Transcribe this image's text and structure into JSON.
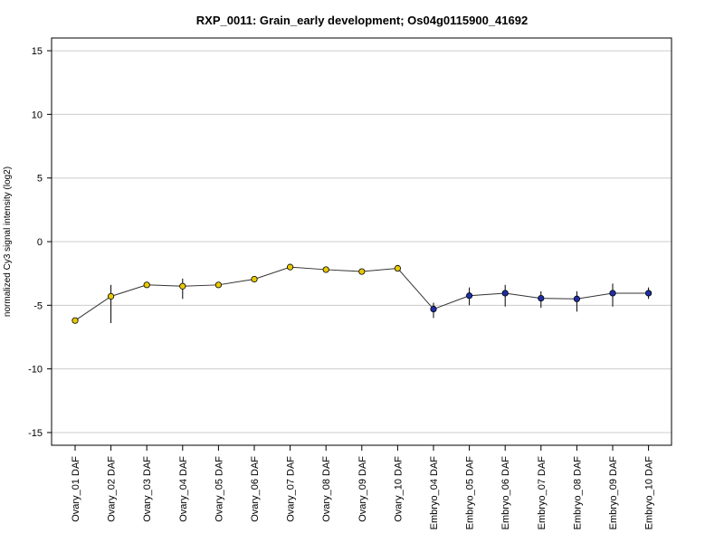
{
  "chart_data": {
    "type": "line",
    "title": "RXP_0011: Grain_early development; Os04g0115900_41692",
    "xlabel": "",
    "ylabel": "normalized Cy3 signal intensity (log2)",
    "ylim": [
      -16,
      16
    ],
    "yticks": [
      -15,
      -10,
      -5,
      0,
      5,
      10,
      15
    ],
    "ytick_labels": [
      "-15",
      "-10",
      "-5",
      "0",
      "5",
      "10",
      "15"
    ],
    "grid": "horizontal",
    "categories": [
      "Ovary_01 DAF",
      "Ovary_02 DAF",
      "Ovary_03 DAF",
      "Ovary_04 DAF",
      "Ovary_05 DAF",
      "Ovary_06 DAF",
      "Ovary_07 DAF",
      "Ovary_08 DAF",
      "Ovary_09 DAF",
      "Ovary_10 DAF",
      "Embryo_04 DAF",
      "Embryo_05 DAF",
      "Embryo_06 DAF",
      "Embryo_07 DAF",
      "Embryo_08 DAF",
      "Embryo_09 DAF",
      "Embryo_10 DAF"
    ],
    "values": [
      -6.2,
      -4.3,
      -3.4,
      -3.5,
      -3.4,
      -2.95,
      -2.0,
      -2.2,
      -2.35,
      -2.1,
      -5.3,
      -4.25,
      -4.05,
      -4.45,
      -4.5,
      -4.05,
      -4.05
    ],
    "error_low": [
      -6.2,
      -6.4,
      -3.5,
      -4.5,
      -3.5,
      -3.0,
      -2.1,
      -2.3,
      -2.45,
      -2.2,
      -6.0,
      -5.0,
      -5.1,
      -5.2,
      -5.5,
      -5.1,
      -4.5
    ],
    "error_high": [
      -6.2,
      -3.4,
      -3.3,
      -2.9,
      -3.3,
      -2.9,
      -1.9,
      -2.1,
      -2.25,
      -2.0,
      -4.8,
      -3.6,
      -3.4,
      -3.9,
      -3.9,
      -3.3,
      -3.6
    ],
    "point_colors": [
      "#e8c900",
      "#e8c900",
      "#e8c900",
      "#e8c900",
      "#e8c900",
      "#e8c900",
      "#e8c900",
      "#e8c900",
      "#e8c900",
      "#e8c900",
      "#1f2fa8",
      "#1f2fa8",
      "#1f2fa8",
      "#1f2fa8",
      "#1f2fa8",
      "#1f2fa8",
      "#1f2fa8"
    ],
    "line_color": "#333333",
    "grid_color": "#cccccc"
  }
}
